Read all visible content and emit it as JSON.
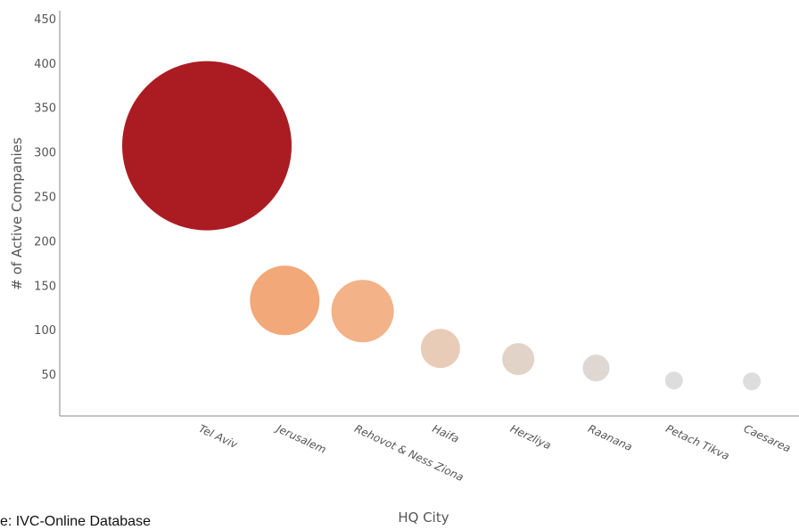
{
  "chart_data": {
    "type": "scatter",
    "categories": [
      "Tel Aviv",
      "Jerusalem",
      "Rehovot & Ness Ziona",
      "Haifa",
      "Herzliya",
      "Raanana",
      "Petach Tikva",
      "Caesarea"
    ],
    "values": [
      308,
      134,
      122,
      80,
      68,
      58,
      44,
      43
    ],
    "colors": [
      "#ab1c22",
      "#f2a878",
      "#f3b287",
      "#e8ccb8",
      "#e2d3c8",
      "#dfd7d2",
      "#dddddd",
      "#dddddd"
    ],
    "yticks": [
      50,
      100,
      150,
      200,
      250,
      300,
      350,
      400,
      450
    ],
    "ylim": [
      0,
      450
    ],
    "xlabel": "HQ City",
    "ylabel": "# of Active Companies",
    "grid": false,
    "legend": "none"
  },
  "source_text": "ce: IVC-Online Database"
}
